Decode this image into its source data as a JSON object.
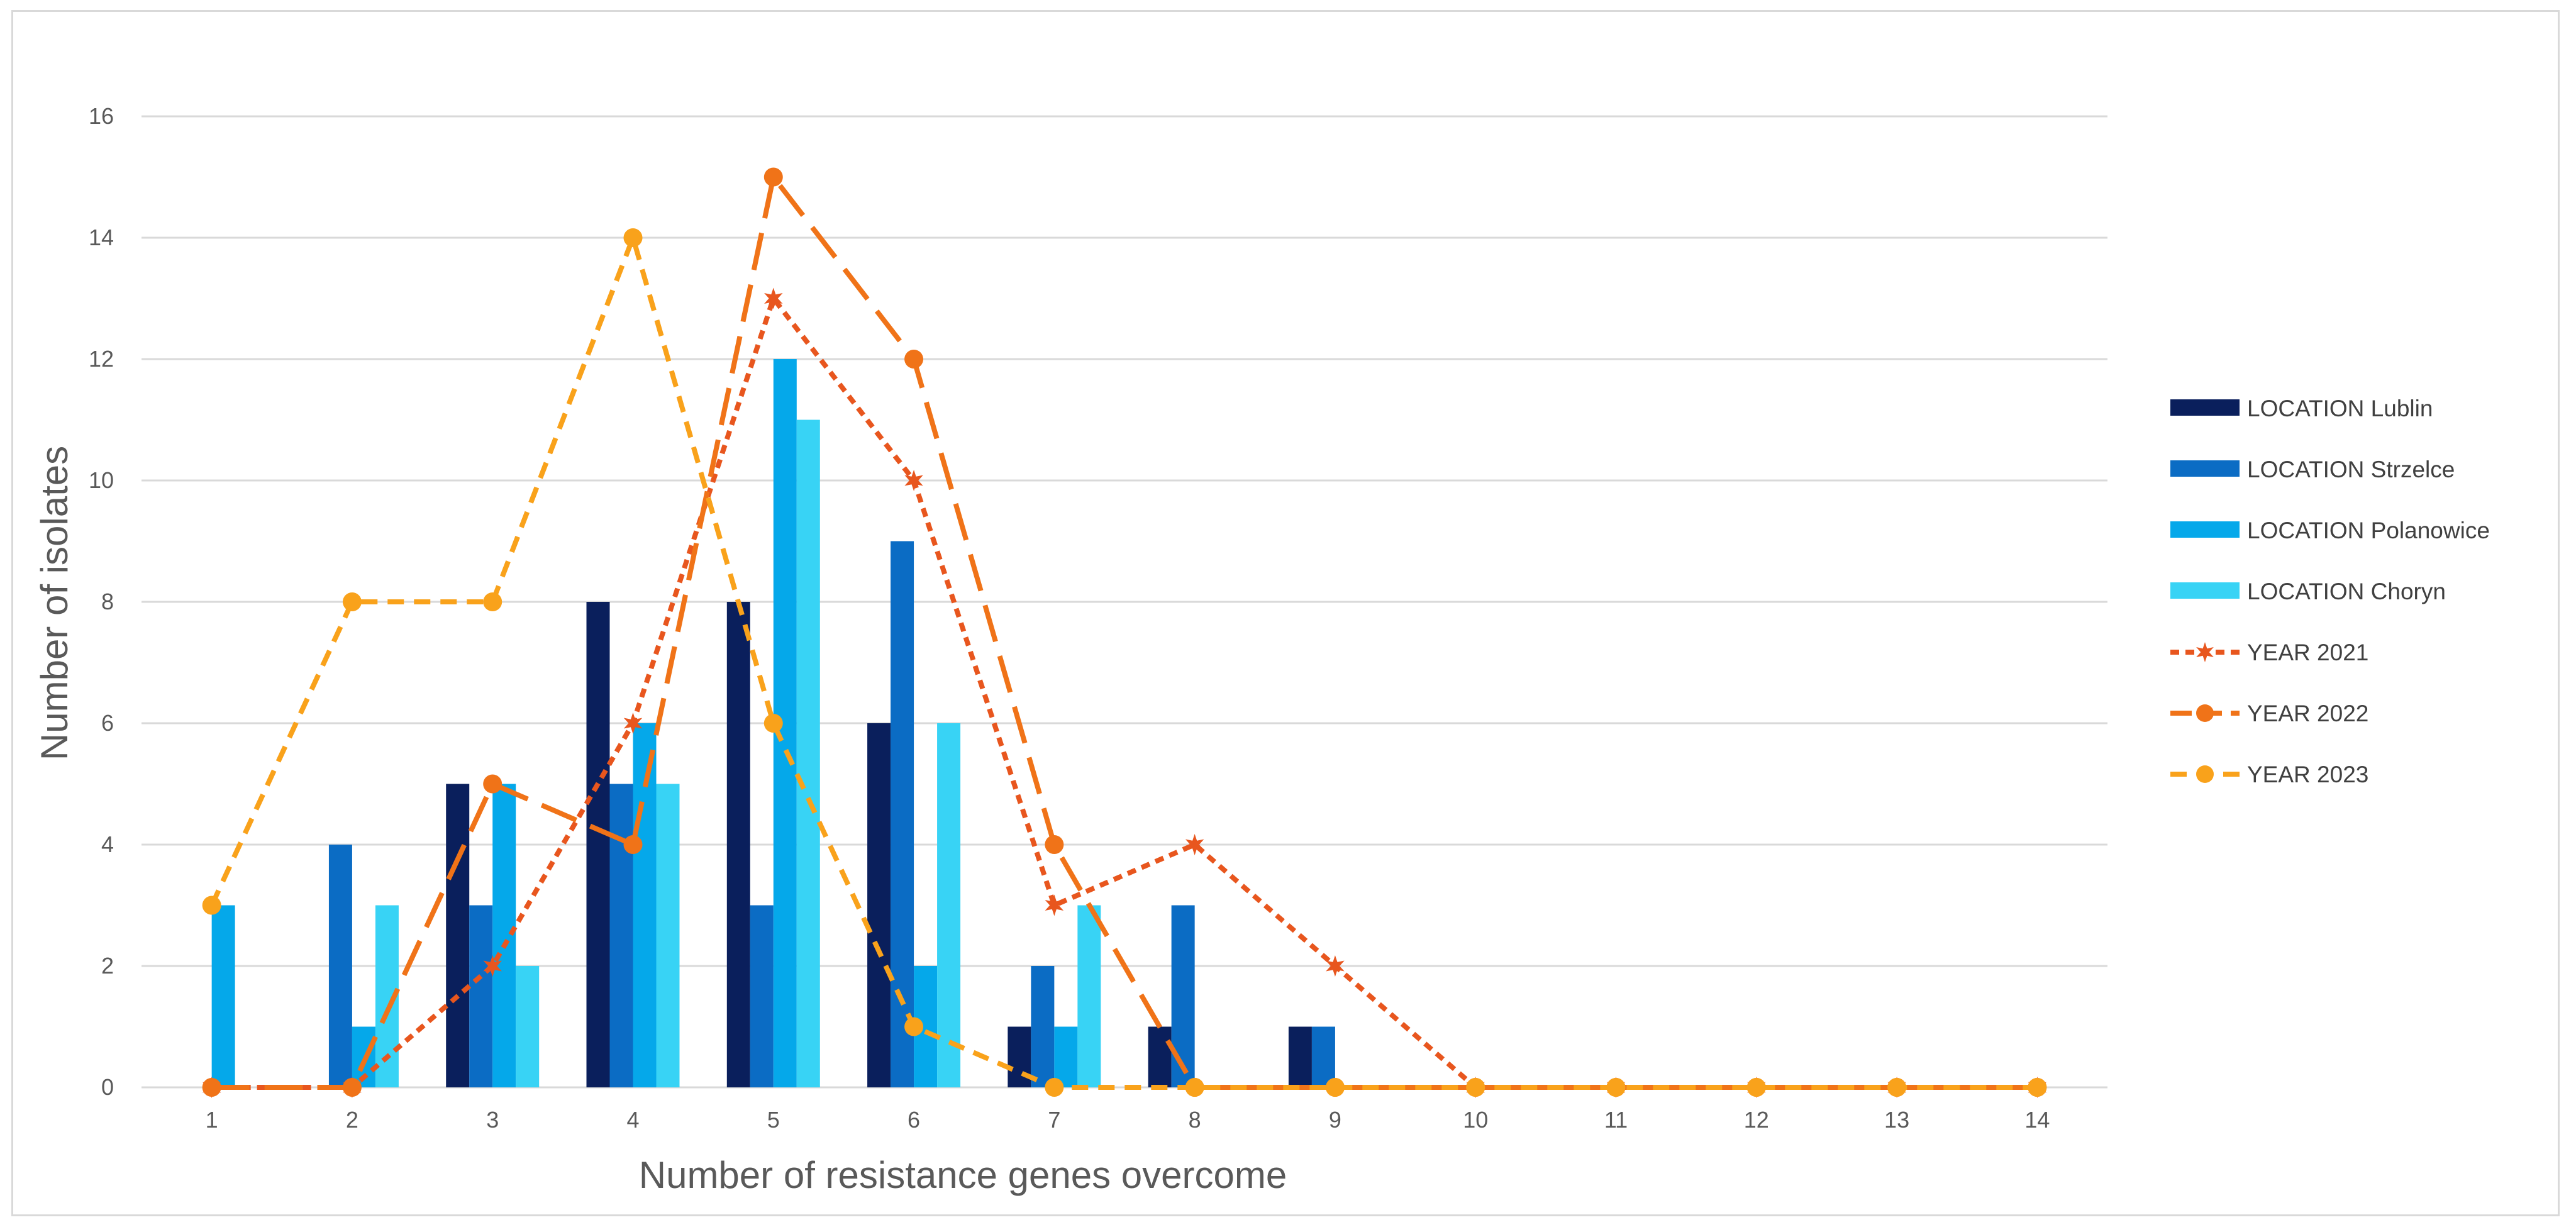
{
  "chart_data": {
    "type": "bar",
    "title": "",
    "xlabel": "Number of resistance genes overcome",
    "ylabel": "Number of isolates",
    "categories": [
      "1",
      "2",
      "3",
      "4",
      "5",
      "6",
      "7",
      "8",
      "9",
      "10",
      "11",
      "12",
      "13",
      "14"
    ],
    "ylim": [
      0,
      16
    ],
    "yticks": [
      0,
      2,
      4,
      6,
      8,
      10,
      12,
      14,
      16
    ],
    "grid": true,
    "legend_position": "right",
    "bar_series": [
      {
        "name": "LOCATION Lublin",
        "color": "#0a1f5c",
        "values": [
          0,
          0,
          5,
          8,
          8,
          6,
          1,
          1,
          1,
          0,
          0,
          0,
          0,
          0
        ]
      },
      {
        "name": "LOCATION Strzelce",
        "color": "#0b6cc4",
        "values": [
          0,
          4,
          3,
          5,
          3,
          9,
          2,
          3,
          1,
          0,
          0,
          0,
          0,
          0
        ]
      },
      {
        "name": "LOCATION Polanowice",
        "color": "#05a8ea",
        "values": [
          3,
          1,
          5,
          6,
          12,
          2,
          1,
          0,
          0,
          0,
          0,
          0,
          0,
          0
        ]
      },
      {
        "name": "LOCATION Choryn",
        "color": "#38d3f5",
        "values": [
          0,
          3,
          2,
          5,
          11,
          6,
          3,
          0,
          0,
          0,
          0,
          0,
          0,
          0
        ]
      }
    ],
    "line_series": [
      {
        "name": "YEAR 2021",
        "color": "#e8561e",
        "marker": "star",
        "dash": "short",
        "values": [
          0,
          0,
          2,
          6,
          13,
          10,
          3,
          4,
          2,
          0,
          0,
          0,
          0,
          0
        ]
      },
      {
        "name": "YEAR 2022",
        "color": "#f07318",
        "marker": "circle",
        "dash": "long",
        "values": [
          0,
          0,
          5,
          4,
          15,
          12,
          4,
          0,
          0,
          0,
          0,
          0,
          0,
          0
        ]
      },
      {
        "name": "YEAR 2023",
        "color": "#f9a21b",
        "marker": "circle",
        "dash": "medium",
        "values": [
          3,
          8,
          8,
          14,
          6,
          1,
          0,
          0,
          0,
          0,
          0,
          0,
          0,
          0
        ]
      }
    ]
  }
}
